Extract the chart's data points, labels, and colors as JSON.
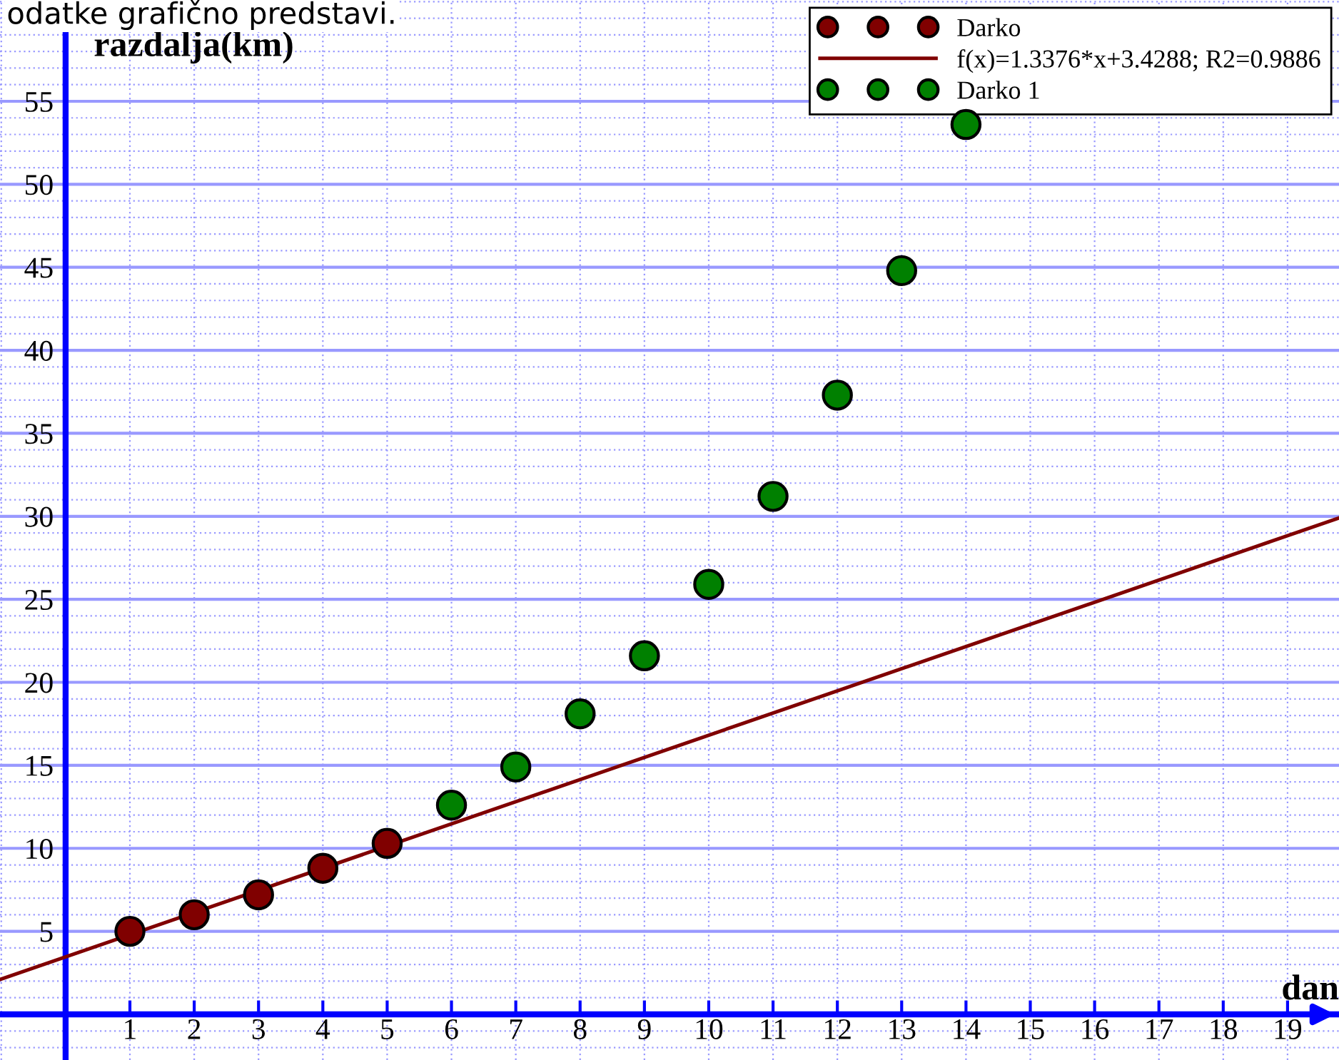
{
  "chart_data": {
    "type": "scatter",
    "xlabel": "dan",
    "ylabel": "razdalja(km)",
    "annotations": [
      "odatke grafično predstavi."
    ],
    "xlim": [
      -1.02,
      19.8
    ],
    "ylim": [
      -2.75,
      61.1
    ],
    "xticks": [
      1,
      2,
      3,
      4,
      5,
      6,
      7,
      8,
      9,
      10,
      11,
      12,
      13,
      14,
      15,
      16,
      17,
      18,
      19
    ],
    "yticks": [
      5,
      10,
      15,
      20,
      25,
      30,
      35,
      40,
      45,
      50,
      55
    ],
    "grid": true,
    "legend": "top right",
    "series": [
      {
        "name": "Darko",
        "color": "#800000",
        "marker": "circle",
        "x": [
          1,
          2,
          3,
          4,
          5
        ],
        "values": [
          5.0,
          6.0,
          7.2,
          8.8,
          10.3
        ]
      },
      {
        "name": "f(x)=1.3376*x+3.4288; R2=0.9886",
        "type": "line",
        "color": "#800000",
        "x": [
          -1.02,
          19.8
        ],
        "values": [
          2.1,
          29.9
        ]
      },
      {
        "name": "Darko 1",
        "color": "#008000",
        "marker": "circle",
        "x": [
          6,
          7,
          8,
          9,
          10,
          11,
          12,
          13,
          14
        ],
        "values": [
          12.6,
          14.9,
          18.1,
          21.6,
          25.9,
          31.2,
          37.3,
          44.8,
          53.6
        ]
      }
    ]
  }
}
